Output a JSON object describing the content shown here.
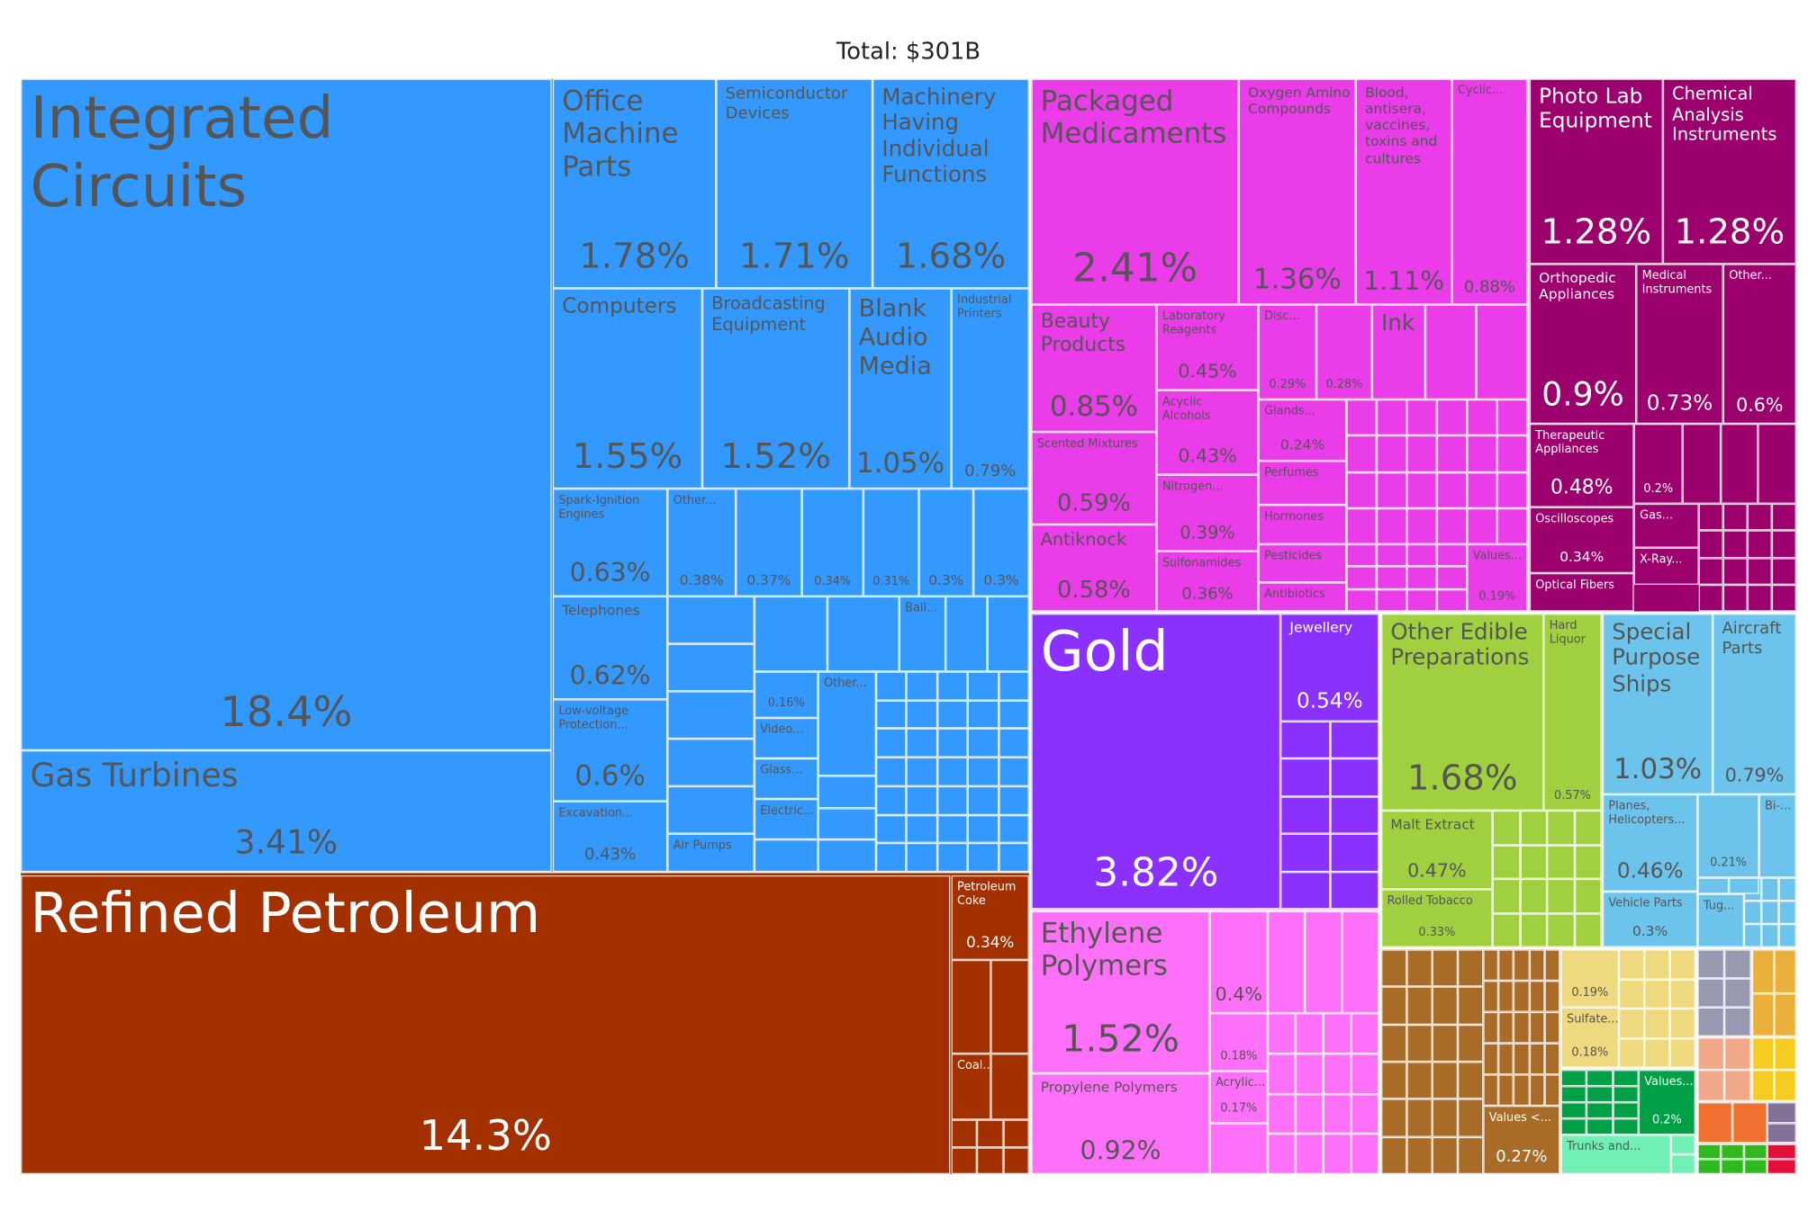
{
  "chart_data": {
    "type": "treemap",
    "title": "Total: $301B",
    "sectors": {
      "blue": "#3399ff",
      "brown": "#a33100",
      "magenta": "#ea3ce9",
      "darkmagenta": "#9c006c",
      "purple": "#8a30ff",
      "pink": "#ff70f8",
      "green": "#a0d040",
      "lightblue": "#6cc4ec",
      "tanbrown": "#a86c28",
      "tan": "#eed97e",
      "darkgreen": "#00a046",
      "mint": "#70f0b4",
      "grayblue": "#9699b0",
      "amber": "#ebb03c",
      "salmon": "#f0a888",
      "yellow": "#f5cc20",
      "orange": "#f07030",
      "mauve": "#857098",
      "brightgreen": "#30b820",
      "red": "#e01038"
    },
    "cells": [
      {
        "label": "Integrated Circuits",
        "value": "18.4%",
        "sector": "blue"
      },
      {
        "label": "Gas Turbines",
        "value": "3.41%",
        "sector": "blue"
      },
      {
        "label": "Office Machine Parts",
        "value": "1.78%",
        "sector": "blue"
      },
      {
        "label": "Semiconductor Devices",
        "value": "1.71%",
        "sector": "blue"
      },
      {
        "label": "Machinery Having Individual Functions",
        "value": "1.68%",
        "sector": "blue"
      },
      {
        "label": "Computers",
        "value": "1.55%",
        "sector": "blue"
      },
      {
        "label": "Broadcasting Equipment",
        "value": "1.52%",
        "sector": "blue"
      },
      {
        "label": "Blank Audio Media",
        "value": "1.05%",
        "sector": "blue"
      },
      {
        "label": "Industrial Printers",
        "value": "0.79%",
        "sector": "blue"
      },
      {
        "label": "Spark-Ignition Engines",
        "value": "0.63%",
        "sector": "blue"
      },
      {
        "label": "Other...",
        "value": "0.38%",
        "sector": "blue"
      },
      {
        "label": "",
        "value": "0.37%",
        "sector": "blue"
      },
      {
        "label": "",
        "value": "0.34%",
        "sector": "blue"
      },
      {
        "label": "",
        "value": "0.31%",
        "sector": "blue"
      },
      {
        "label": "",
        "value": "0.3%",
        "sector": "blue"
      },
      {
        "label": "",
        "value": "0.3%",
        "sector": "blue"
      },
      {
        "label": "Telephones",
        "value": "0.62%",
        "sector": "blue"
      },
      {
        "label": "Low-voltage Protection...",
        "value": "0.6%",
        "sector": "blue"
      },
      {
        "label": "Excavation...",
        "value": "0.43%",
        "sector": "blue"
      },
      {
        "label": "Ball...",
        "value": "",
        "sector": "blue"
      },
      {
        "label": "",
        "value": "0.16%",
        "sector": "blue"
      },
      {
        "label": "Video...",
        "value": "",
        "sector": "blue"
      },
      {
        "label": "Glass...",
        "value": "",
        "sector": "blue"
      },
      {
        "label": "Electric...",
        "value": "",
        "sector": "blue"
      },
      {
        "label": "Other...",
        "value": "",
        "sector": "blue"
      },
      {
        "label": "Air Pumps",
        "value": "",
        "sector": "blue"
      },
      {
        "label": "Refined Petroleum",
        "value": "14.3%",
        "sector": "brown"
      },
      {
        "label": "Petroleum Coke",
        "value": "0.34%",
        "sector": "brown"
      },
      {
        "label": "Coal...",
        "value": "",
        "sector": "brown"
      },
      {
        "label": "Packaged Medicaments",
        "value": "2.41%",
        "sector": "magenta"
      },
      {
        "label": "Oxygen Amino Compounds",
        "value": "1.36%",
        "sector": "magenta"
      },
      {
        "label": "Blood, antisera, vaccines, toxins and cultures",
        "value": "1.11%",
        "sector": "magenta"
      },
      {
        "label": "Cyclic...",
        "value": "0.88%",
        "sector": "magenta"
      },
      {
        "label": "Beauty Products",
        "value": "0.85%",
        "sector": "magenta"
      },
      {
        "label": "Laboratory Reagents",
        "value": "0.45%",
        "sector": "magenta"
      },
      {
        "label": "Acyclic Alcohols",
        "value": "0.43%",
        "sector": "magenta"
      },
      {
        "label": "Nitrogen...",
        "value": "0.39%",
        "sector": "magenta"
      },
      {
        "label": "Sulfonamides",
        "value": "0.36%",
        "sector": "magenta"
      },
      {
        "label": "Scented Mixtures",
        "value": "0.59%",
        "sector": "magenta"
      },
      {
        "label": "Antiknock",
        "value": "0.58%",
        "sector": "magenta"
      },
      {
        "label": "Disc...",
        "value": "0.29%",
        "sector": "magenta"
      },
      {
        "label": "",
        "value": "0.28%",
        "sector": "magenta"
      },
      {
        "label": "Ink",
        "value": "",
        "sector": "magenta"
      },
      {
        "label": "Glands...",
        "value": "0.24%",
        "sector": "magenta"
      },
      {
        "label": "Perfumes",
        "value": "",
        "sector": "magenta"
      },
      {
        "label": "Hormones",
        "value": "",
        "sector": "magenta"
      },
      {
        "label": "Pesticides",
        "value": "",
        "sector": "magenta"
      },
      {
        "label": "Antibiotics",
        "value": "",
        "sector": "magenta"
      },
      {
        "label": "Values...",
        "value": "0.19%",
        "sector": "magenta"
      },
      {
        "label": "Photo Lab Equipment",
        "value": "1.28%",
        "sector": "darkmagenta"
      },
      {
        "label": "Chemical Analysis Instruments",
        "value": "1.28%",
        "sector": "darkmagenta"
      },
      {
        "label": "Orthopedic Appliances",
        "value": "0.9%",
        "sector": "darkmagenta"
      },
      {
        "label": "Medical Instruments",
        "value": "0.73%",
        "sector": "darkmagenta"
      },
      {
        "label": "Other...",
        "value": "0.6%",
        "sector": "darkmagenta"
      },
      {
        "label": "Therapeutic Appliances",
        "value": "0.48%",
        "sector": "darkmagenta"
      },
      {
        "label": "Oscilloscopes",
        "value": "0.34%",
        "sector": "darkmagenta"
      },
      {
        "label": "Optical Fibers",
        "value": "",
        "sector": "darkmagenta"
      },
      {
        "label": "",
        "value": "0.2%",
        "sector": "darkmagenta"
      },
      {
        "label": "Gas...",
        "value": "",
        "sector": "darkmagenta"
      },
      {
        "label": "X-Ray...",
        "value": "",
        "sector": "darkmagenta"
      },
      {
        "label": "Gold",
        "value": "3.82%",
        "sector": "purple"
      },
      {
        "label": "Jewellery",
        "value": "0.54%",
        "sector": "purple"
      },
      {
        "label": "Ethylene Polymers",
        "value": "1.52%",
        "sector": "pink"
      },
      {
        "label": "Propylene Polymers",
        "value": "0.92%",
        "sector": "pink"
      },
      {
        "label": "",
        "value": "0.4%",
        "sector": "pink"
      },
      {
        "label": "",
        "value": "0.18%",
        "sector": "pink"
      },
      {
        "label": "Acrylic...",
        "value": "0.17%",
        "sector": "pink"
      },
      {
        "label": "Other Edible Preparations",
        "value": "1.68%",
        "sector": "green"
      },
      {
        "label": "Hard Liquor",
        "value": "0.57%",
        "sector": "green"
      },
      {
        "label": "Malt Extract",
        "value": "0.47%",
        "sector": "green"
      },
      {
        "label": "Rolled Tobacco",
        "value": "0.33%",
        "sector": "green"
      },
      {
        "label": "Special Purpose Ships",
        "value": "1.03%",
        "sector": "lightblue"
      },
      {
        "label": "Aircraft Parts",
        "value": "0.79%",
        "sector": "lightblue"
      },
      {
        "label": "Planes, Helicopters...",
        "value": "0.46%",
        "sector": "lightblue"
      },
      {
        "label": "Vehicle Parts",
        "value": "0.3%",
        "sector": "lightblue"
      },
      {
        "label": "",
        "value": "0.21%",
        "sector": "lightblue"
      },
      {
        "label": "Bi-...",
        "value": "",
        "sector": "lightblue"
      },
      {
        "label": "Tug...",
        "value": "",
        "sector": "lightblue"
      },
      {
        "label": "Values <...",
        "value": "0.27%",
        "sector": "tanbrown"
      },
      {
        "label": "",
        "value": "0.19%",
        "sector": "tan"
      },
      {
        "label": "Sulfate...",
        "value": "0.18%",
        "sector": "tan"
      },
      {
        "label": "Values...",
        "value": "0.2%",
        "sector": "darkgreen"
      },
      {
        "label": "Trunks and...",
        "value": "",
        "sector": "mint"
      }
    ]
  }
}
